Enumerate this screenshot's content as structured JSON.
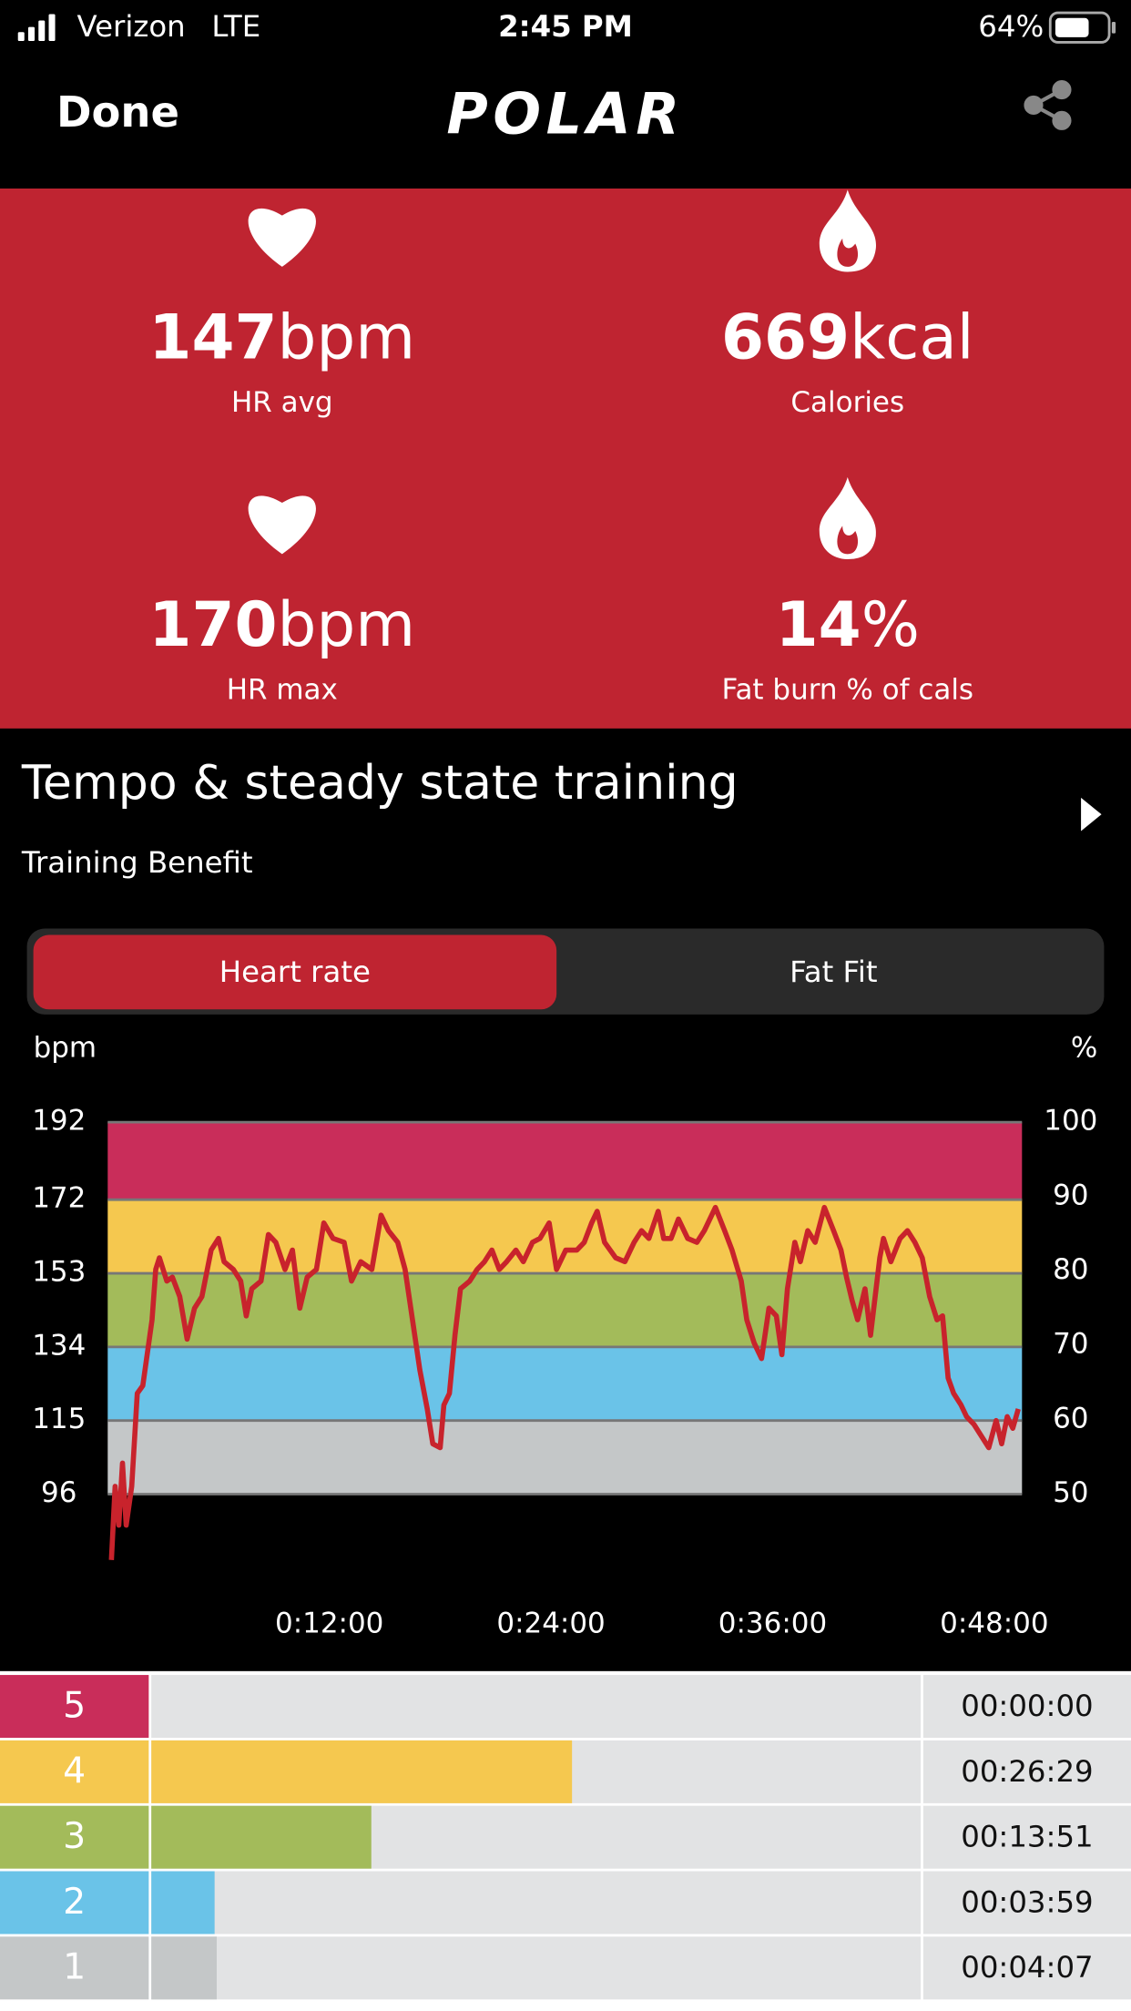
{
  "status_bar": {
    "carrier": "Verizon",
    "network": "LTE",
    "time": "2:45 PM",
    "battery": "64%"
  },
  "nav": {
    "done": "Done",
    "logo": "POLAR"
  },
  "stats": [
    {
      "value": "147",
      "unit": "bpm",
      "label": "HR avg",
      "icon": "heart"
    },
    {
      "value": "669",
      "unit": "kcal",
      "label": "Calories",
      "icon": "flame"
    },
    {
      "value": "170",
      "unit": "bpm",
      "label": "HR max",
      "icon": "heart"
    },
    {
      "value": "14",
      "unit": "%",
      "label": "Fat burn % of cals",
      "icon": "flame"
    }
  ],
  "training": {
    "title": "Tempo & steady state training",
    "subtitle": "Training Benefit"
  },
  "tabs": [
    "Heart rate",
    "Fat Fit"
  ],
  "chart_data": {
    "type": "line",
    "y_label": "bpm",
    "y2_label": "%",
    "x": [
      0.2,
      0.4,
      0.6,
      0.8,
      1.0,
      1.3,
      1.6,
      1.9,
      2.4,
      2.6,
      2.8,
      3.2,
      3.5,
      3.9,
      4.3,
      4.7,
      5.1,
      5.6,
      6.0,
      6.3,
      6.8,
      7.2,
      7.5,
      7.8,
      8.3,
      8.7,
      9.1,
      9.6,
      10.0,
      10.4,
      10.8,
      11.3,
      11.7,
      12.2,
      12.8,
      13.2,
      13.7,
      14.3,
      14.8,
      15.2,
      15.7,
      16.1,
      16.5,
      16.9,
      17.3,
      17.6,
      18.0,
      18.2,
      18.5,
      18.8,
      19.1,
      19.6,
      20.0,
      20.4,
      20.8,
      21.2,
      21.6,
      22.1,
      22.5,
      23.0,
      23.4,
      23.9,
      24.3,
      24.8,
      25.4,
      25.8,
      26.2,
      26.5,
      26.9,
      27.5,
      28.0,
      28.5,
      28.9,
      29.3,
      29.8,
      30.1,
      30.5,
      30.9,
      31.4,
      31.9,
      32.3,
      32.9,
      33.4,
      33.8,
      34.3,
      34.6,
      35.0,
      35.4,
      35.8,
      36.2,
      36.5,
      36.8,
      37.2,
      37.5,
      37.9,
      38.3,
      38.8,
      39.3,
      39.7,
      40.0,
      40.3,
      40.6,
      41.0,
      41.3,
      41.8,
      42.0,
      42.4,
      42.9,
      43.3,
      43.7,
      44.1,
      44.5,
      44.9,
      45.2,
      45.5,
      45.8,
      46.2,
      46.5,
      46.9,
      47.3,
      47.7,
      48.1,
      48.4,
      48.7,
      49.0,
      49.3
    ],
    "series": [
      {
        "color": "#c8232c",
        "values": [
          79,
          98,
          88,
          104,
          88,
          98,
          122,
          124,
          141,
          154,
          157,
          151,
          152,
          147,
          136,
          144,
          147,
          159,
          162,
          156,
          154,
          151,
          142,
          149,
          151,
          163,
          161,
          154,
          159,
          144,
          152,
          154,
          166,
          162,
          161,
          151,
          156,
          154,
          168,
          164,
          161,
          154,
          141,
          128,
          118,
          109,
          108,
          119,
          122,
          137,
          149,
          151,
          154,
          156,
          159,
          154,
          156,
          159,
          156,
          161,
          162,
          166,
          154,
          159,
          159,
          161,
          166,
          169,
          161,
          157,
          156,
          161,
          164,
          162,
          169,
          162,
          162,
          167,
          162,
          161,
          164,
          170,
          164,
          159,
          151,
          141,
          135,
          131,
          144,
          142,
          132,
          149,
          161,
          156,
          164,
          161,
          170,
          164,
          159,
          152,
          146,
          141,
          149,
          137,
          157,
          162,
          156,
          162,
          164,
          161,
          157,
          147,
          141,
          142,
          126,
          122,
          119,
          116,
          114,
          111,
          108,
          115,
          109,
          116,
          113,
          118
        ]
      }
    ],
    "xlim": [
      0,
      49.5
    ],
    "xticks": [
      {
        "value": 12,
        "label": "0:12:00"
      },
      {
        "value": 24,
        "label": "0:24:00"
      },
      {
        "value": 36,
        "label": "0:36:00"
      },
      {
        "value": 48,
        "label": "0:48:00"
      }
    ],
    "ylim": [
      96,
      192
    ],
    "yticks": [
      96,
      115,
      134,
      153,
      172,
      192
    ],
    "y2lim": [
      50,
      100
    ],
    "y2ticks": [
      50,
      60,
      70,
      80,
      90,
      100
    ],
    "grid": true
  },
  "zones": [
    {
      "label": "5",
      "color": "#c92d5a",
      "time": "00:00:00",
      "seconds": 0
    },
    {
      "label": "4",
      "color": "#f5c84f",
      "time": "00:26:29",
      "seconds": 1589
    },
    {
      "label": "3",
      "color": "#a3bb5a",
      "time": "00:13:51",
      "seconds": 831
    },
    {
      "label": "2",
      "color": "#6ac3e8",
      "time": "00:03:59",
      "seconds": 239
    },
    {
      "label": "1",
      "color": "#c4c7c8",
      "time": "00:04:07",
      "seconds": 247
    }
  ]
}
